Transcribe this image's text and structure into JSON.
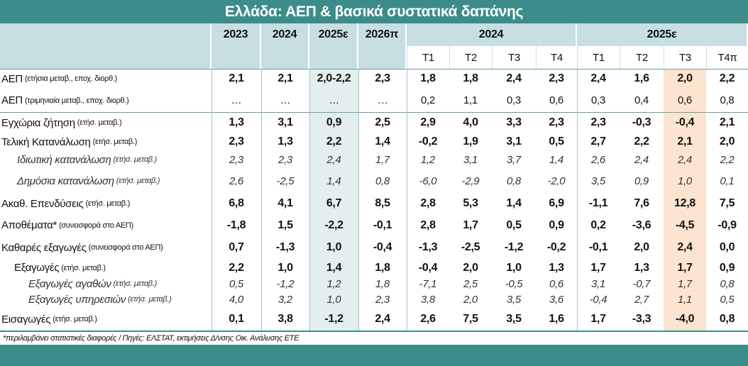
{
  "title": "Ελλάδα: ΑΕΠ & βασικά συστατικά δαπάνης",
  "table": {
    "header_years": [
      "2023",
      "2024",
      "2025ε",
      "2026π"
    ],
    "header_groups": [
      "2024",
      "2025ε"
    ],
    "quarters": [
      [
        "Τ1",
        "Τ2",
        "Τ3",
        "Τ4"
      ],
      [
        "Τ1",
        "Τ2",
        "Τ3",
        "Τ4π"
      ]
    ],
    "rows": [
      {
        "label": "ΑΕΠ",
        "note": "(ετήσια μεταβ., εποχ. διορθ.)",
        "values": [
          "2,1",
          "2,1",
          "2,0-2,2",
          "2,3",
          "1,8",
          "1,8",
          "2,4",
          "2,3",
          "2,4",
          "1,6",
          "2,0",
          "2,2"
        ]
      },
      {
        "label": "ΑΕΠ",
        "note": "(τριμηνιαία μεταβ., εποχ. διορθ.)",
        "values": [
          "…",
          "…",
          "…",
          "…",
          "0,2",
          "1,1",
          "0,3",
          "0,6",
          "0,3",
          "0,4",
          "0,6",
          "0,8"
        ]
      },
      {
        "label": "Εγχώρια ζήτηση",
        "note": "(ετήσ. μεταβ.)",
        "values": [
          "1,3",
          "3,1",
          "0,9",
          "2,5",
          "2,9",
          "4,0",
          "3,3",
          "2,3",
          "2,3",
          "-0,3",
          "-0,4",
          "2,1"
        ]
      },
      {
        "label": "Τελική Κατανάλωση",
        "note": "(ετήσ. μεταβ.)",
        "values": [
          "2,3",
          "1,3",
          "2,2",
          "1,4",
          "-0,2",
          "1,9",
          "3,1",
          "0,5",
          "2,7",
          "2,2",
          "2,1",
          "2,0"
        ]
      },
      {
        "label": "Ιδιωτική κατανάλωση",
        "note": "(ετήσ. μεταβ.)",
        "values": [
          "2,3",
          "2,3",
          "2,4",
          "1,7",
          "1,2",
          "3,1",
          "3,7",
          "1,4",
          "2,6",
          "2,4",
          "2,4",
          "2,2"
        ]
      },
      {
        "label": "Δημόσια κατανάλωση",
        "note": "(ετήσ. μεταβ.)",
        "values": [
          "2,6",
          "-2,5",
          "1,4",
          "0,8",
          "-6,0",
          "-2,9",
          "0,8",
          "-2,0",
          "3,5",
          "0,9",
          "1,0",
          "0,1"
        ]
      },
      {
        "label": "Ακαθ. Επενδύσεις",
        "note": "(ετήσ. μεταβ.)",
        "values": [
          "6,8",
          "4,1",
          "6,7",
          "8,5",
          "2,8",
          "5,3",
          "1,4",
          "6,9",
          "-1,1",
          "7,6",
          "12,8",
          "7,5"
        ]
      },
      {
        "label": "Αποθέματα*",
        "note": "(συνεισφορά στο ΑΕΠ)",
        "values": [
          "-1,8",
          "1,5",
          "-2,2",
          "-0,1",
          "2,8",
          "1,7",
          "0,5",
          "0,9",
          "0,2",
          "-3,6",
          "-4,5",
          "-0,9"
        ]
      },
      {
        "label": "Καθαρές εξαγωγές",
        "note": "(συνεισφορά στο ΑΕΠ)",
        "values": [
          "0,7",
          "-1,3",
          "1,0",
          "-0,4",
          "-1,3",
          "-2,5",
          "-1,2",
          "-0,2",
          "-0,1",
          "2,0",
          "2,4",
          "0,0"
        ]
      },
      {
        "label": "Εξαγωγές",
        "note": "(ετήσ. μεταβ.)",
        "values": [
          "2,2",
          "1,0",
          "1,4",
          "1,8",
          "-0,4",
          "2,0",
          "1,0",
          "1,3",
          "1,7",
          "1,3",
          "1,7",
          "0,9"
        ]
      },
      {
        "label": "Εξαγωγές αγαθών",
        "note": "(ετήσ. μεταβ.)",
        "values": [
          "0,5",
          "-1,2",
          "1,2",
          "1,8",
          "-7,1",
          "2,5",
          "-0,5",
          "0,6",
          "3,1",
          "-0,7",
          "1,7",
          "0,8"
        ]
      },
      {
        "label": "Εξαγωγές υπηρεσιών",
        "note": "(ετήσ. μεταβ.)",
        "values": [
          "4,0",
          "3,2",
          "1,0",
          "2,3",
          "3,8",
          "2,0",
          "3,5",
          "3,6",
          "-0,4",
          "2,7",
          "1,1",
          "0,5"
        ]
      },
      {
        "label": "Εισαγωγές",
        "note": "(ετήσ. μεταβ.)",
        "values": [
          "0,1",
          "3,8",
          "-1,2",
          "2,4",
          "2,6",
          "7,5",
          "3,5",
          "1,6",
          "1,7",
          "-3,3",
          "-4,0",
          "0,8"
        ]
      }
    ]
  },
  "footnote": "*περιλαμβάνει στατιστικές διαφορές / Πηγές: ΕΛΣΤΑΤ, εκτιμήσεις Δ/νσης Οικ. Ανάλυσης ΕΤΕ"
}
